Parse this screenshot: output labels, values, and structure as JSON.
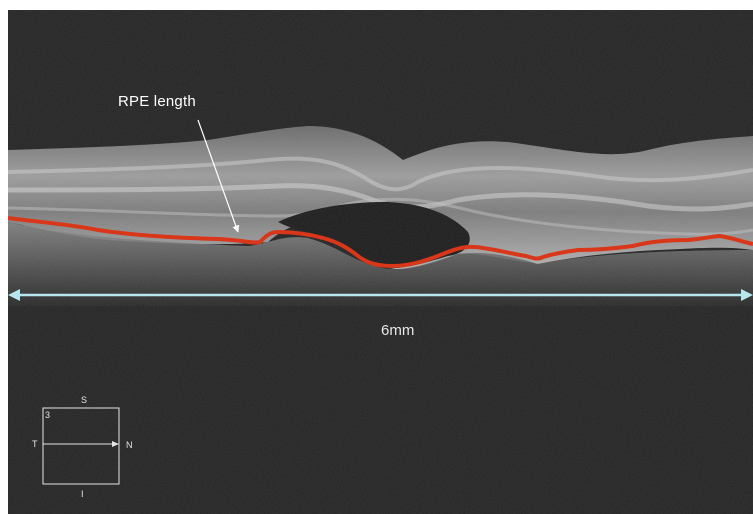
{
  "annotations": {
    "rpe_label": "RPE length",
    "scale_label": "6mm"
  },
  "orientation_grid": {
    "superior": "S",
    "inferior": "I",
    "temporal": "T",
    "nasal": "N",
    "scan_number": "3"
  },
  "colors": {
    "background": "#232323",
    "rpe_trace": "#d9361a",
    "scale_arrow": "#b8e6ee",
    "annotation_text": "#ffffff"
  }
}
